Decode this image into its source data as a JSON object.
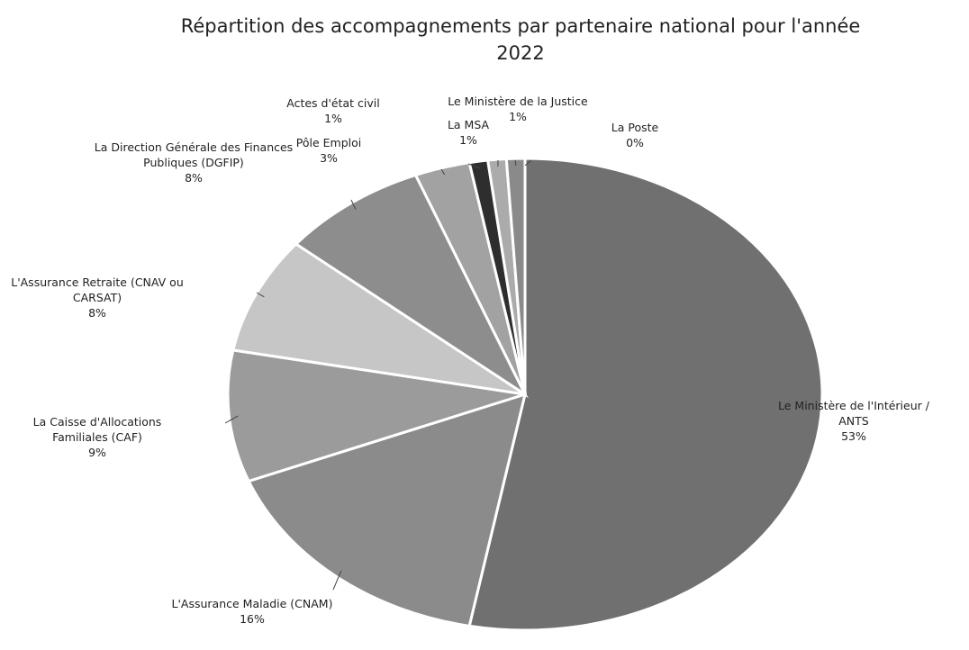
{
  "chart_data": {
    "type": "pie",
    "title": "Répartition des accompagnements par partenaire national pour l'année 2022",
    "categories": [
      "Le Ministère de l'Intérieur / ANTS",
      "L'Assurance Maladie (CNAM)",
      "La Caisse d'Allocations Familiales (CAF)",
      "L'Assurance Retraite (CNAV ou CARSAT)",
      "La Direction Générale des Finances Publiques (DGFIP)",
      "Pôle Emploi",
      "Actes d'état civil",
      "La MSA",
      "Le Ministère de la Justice",
      "La Poste"
    ],
    "values": [
      53,
      16,
      9,
      8,
      8,
      3,
      1,
      1,
      1,
      0
    ],
    "value_labels": [
      "53%",
      "16%",
      "9%",
      "8%",
      "8%",
      "3%",
      "1%",
      "1%",
      "1%",
      "0%"
    ],
    "colors": [
      "#707070",
      "#8b8b8b",
      "#9b9b9b",
      "#c6c6c6",
      "#8d8d8d",
      "#a2a2a2",
      "#2e2e2e",
      "#ababab",
      "#8a8a8a",
      "#cfcfcf"
    ]
  }
}
